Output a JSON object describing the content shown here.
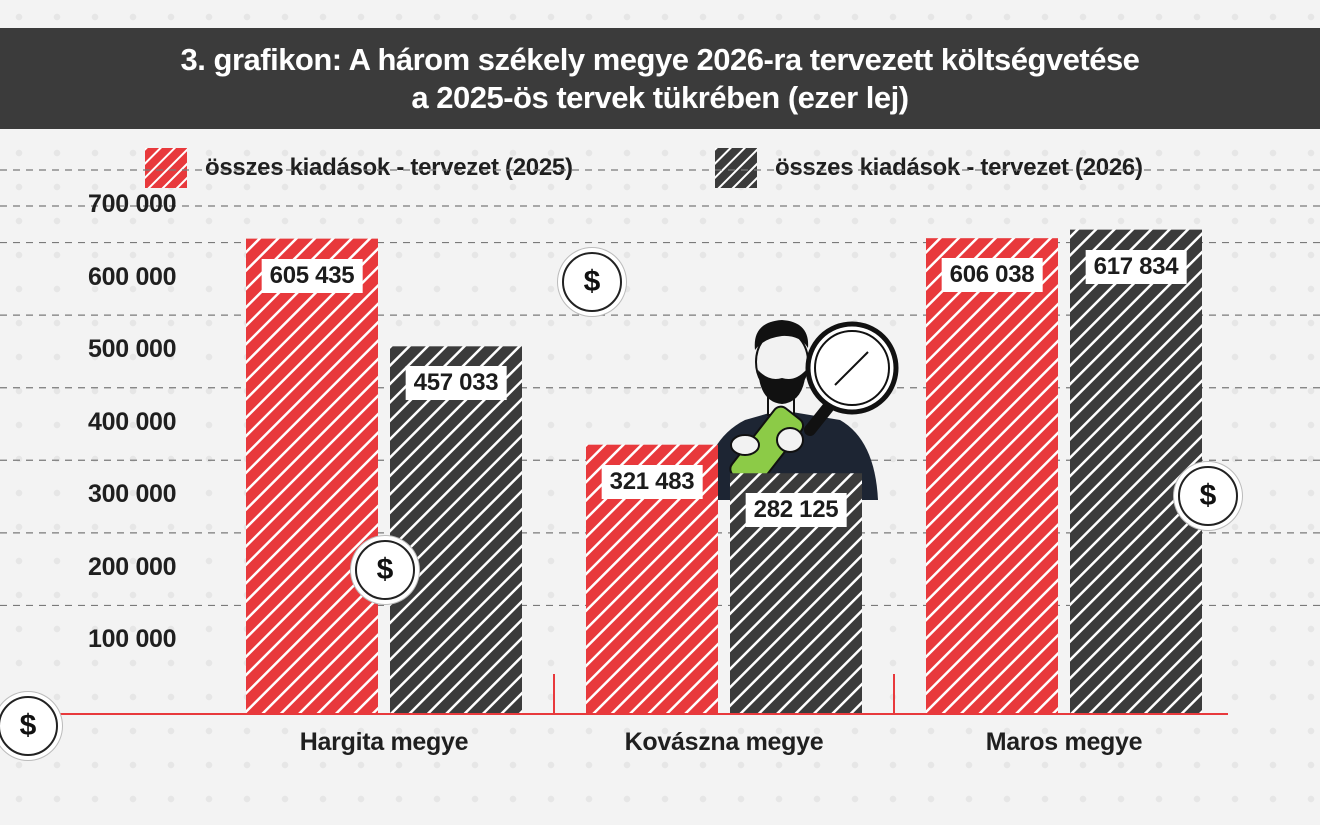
{
  "title": {
    "line1": "3. grafikon: A három székely megye 2026-ra tervezett költségvetése",
    "line2": "a 2025-ös tervek tükrében (ezer lej)"
  },
  "legend": {
    "s2025": "összes kiadások - tervezet (2025)",
    "s2026": "összes kiadások - tervezet (2026)"
  },
  "coin_symbol": "$",
  "colors": {
    "red": "#e8393c",
    "dark": "#3b3b3b",
    "axis": "#e8393c"
  },
  "chart_data": {
    "type": "bar",
    "title": "3. grafikon: A három székely megye 2026-ra tervezett költségvetése a 2025-ös tervek tükrében (ezer lej)",
    "categories": [
      "Hargita megye",
      "Kovászna megye",
      "Maros megye"
    ],
    "series": [
      {
        "name": "összes kiadások - tervezet (2025)",
        "values": [
          605435,
          321483,
          606038
        ],
        "value_labels": [
          "605 435",
          "321 483",
          "606 038"
        ]
      },
      {
        "name": "összes kiadások - tervezet (2026)",
        "values": [
          457033,
          282125,
          617834
        ],
        "value_labels": [
          "457 033",
          "282 125",
          "617 834"
        ]
      }
    ],
    "ytick_labels": [
      "100 000",
      "200 000",
      "300 000",
      "400 000",
      "500 000",
      "600 000",
      "700 000"
    ],
    "ytick_values": [
      100000,
      200000,
      300000,
      400000,
      500000,
      600000,
      700000
    ],
    "ylim": [
      0,
      700000
    ],
    "grid": true,
    "legend_position": "top"
  }
}
